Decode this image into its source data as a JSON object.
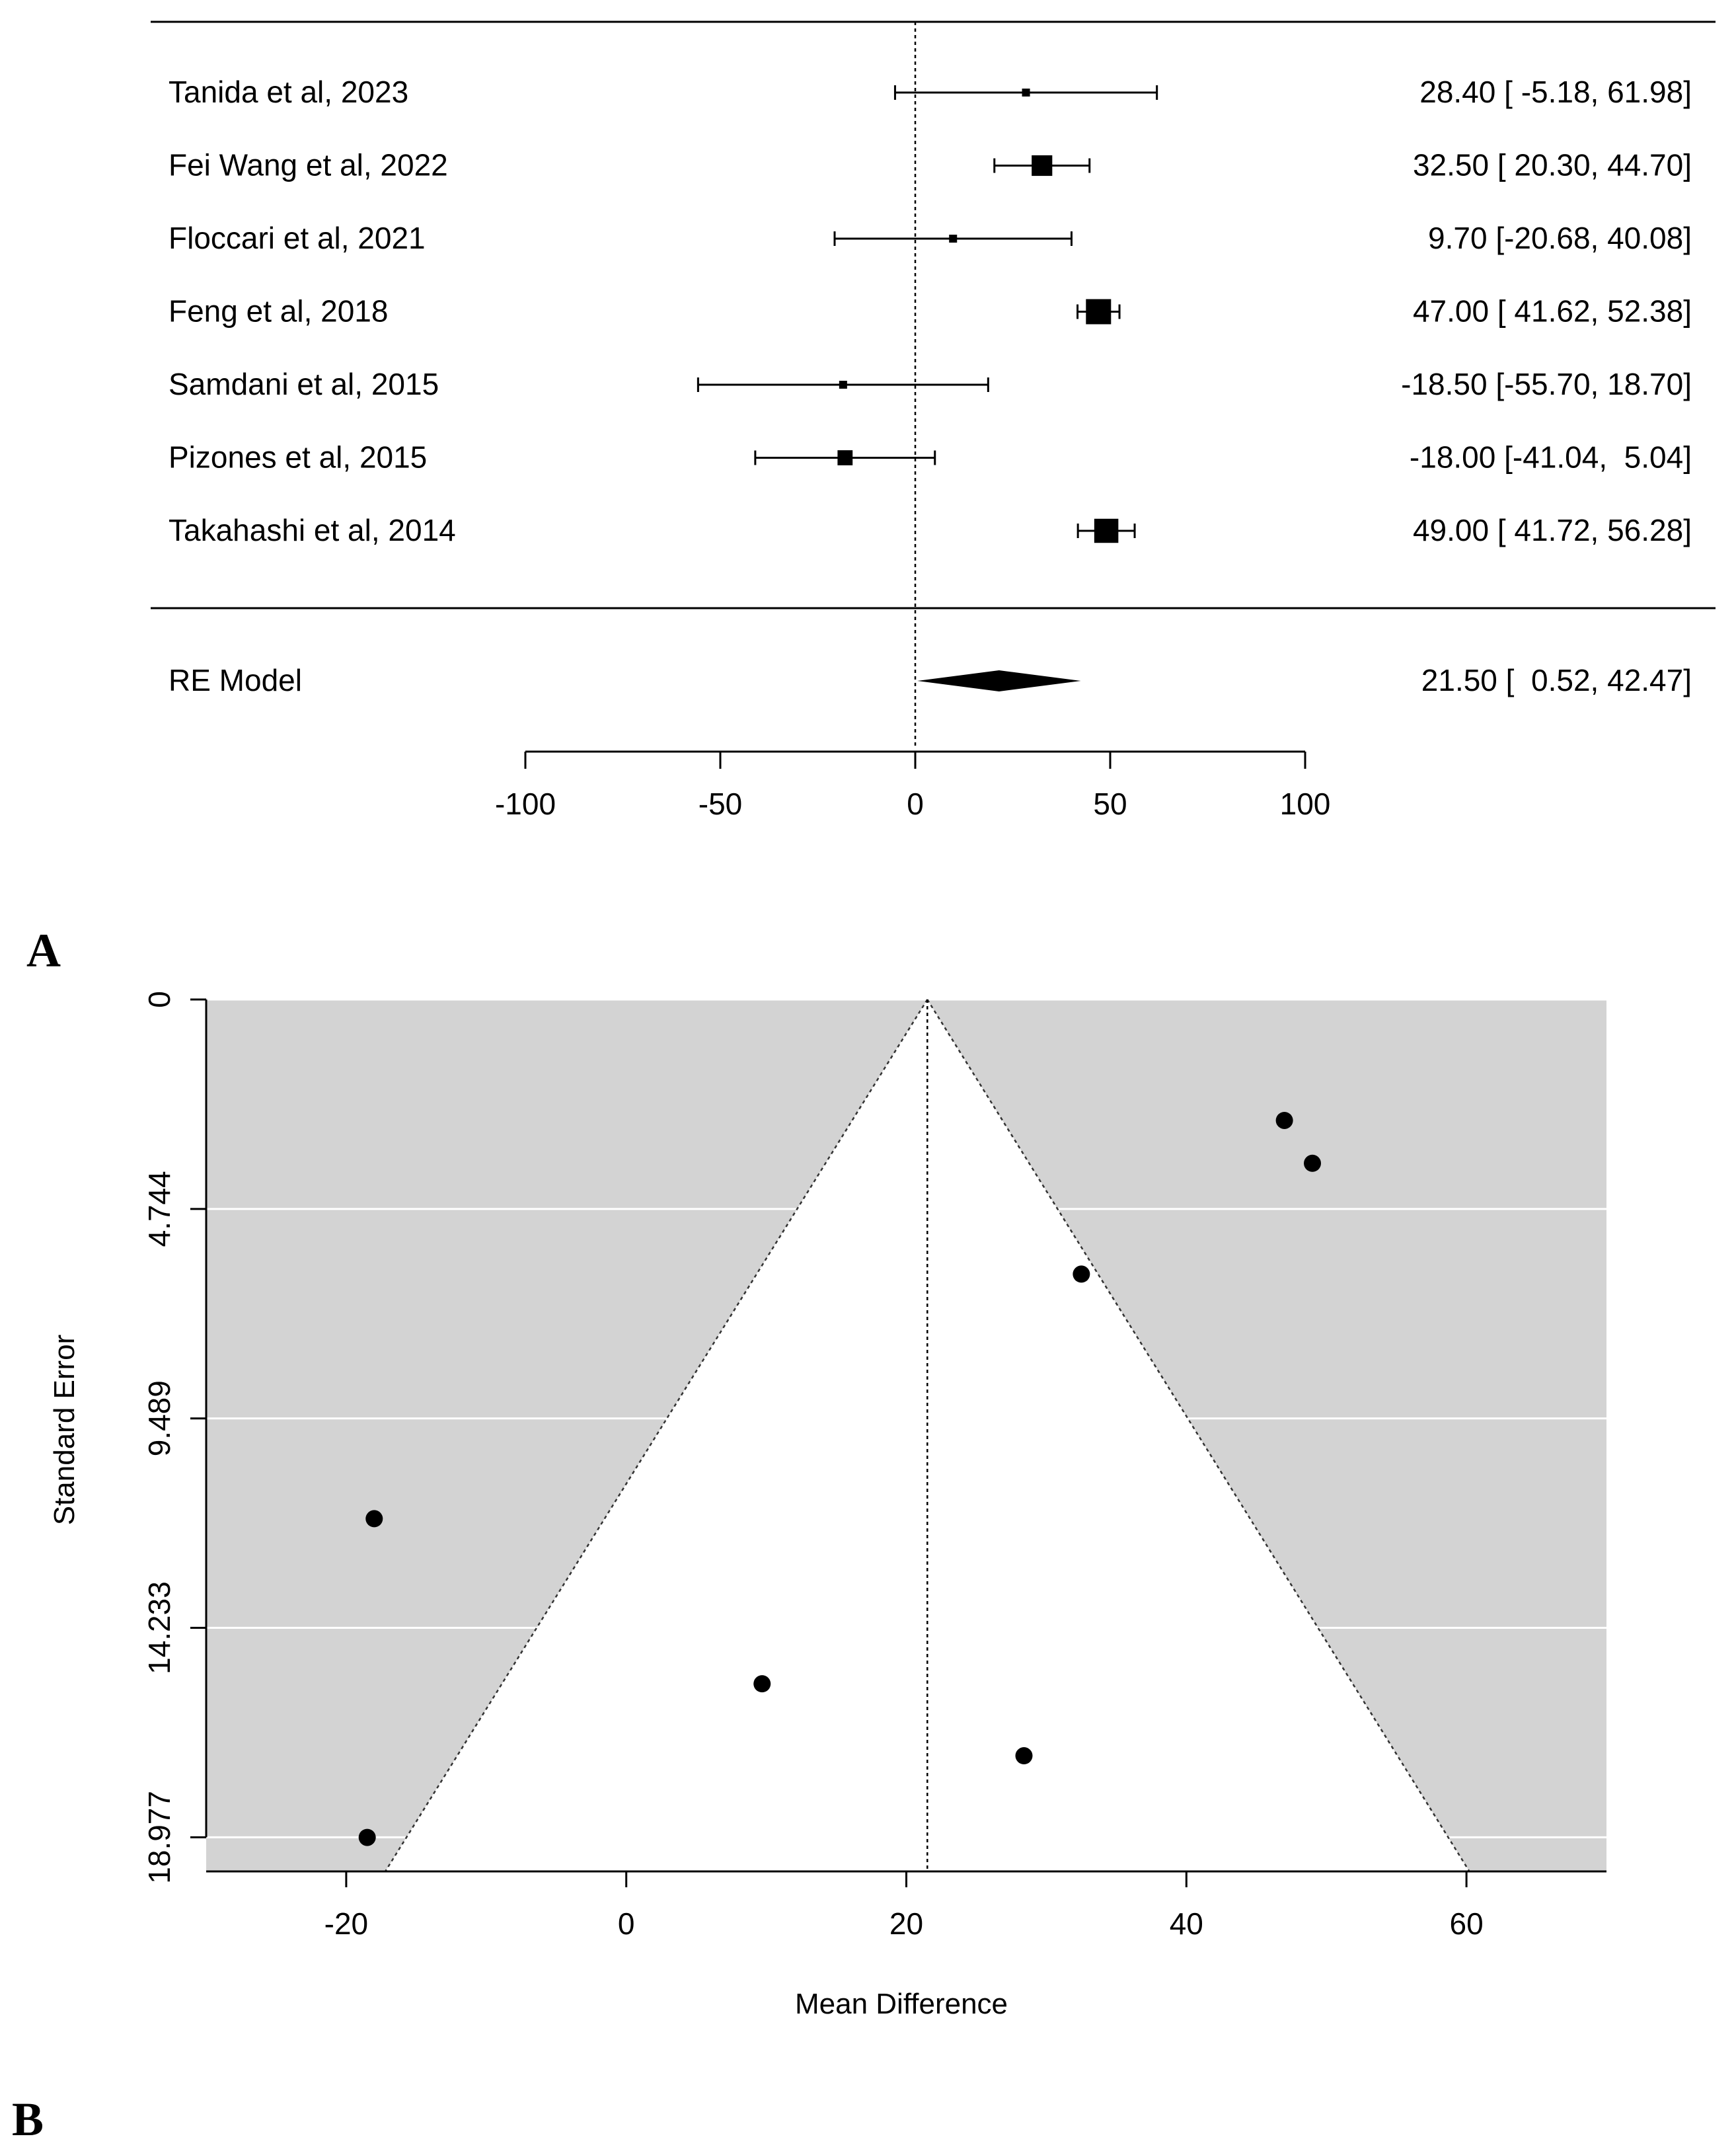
{
  "chart_data": [
    {
      "type": "forest",
      "panel_label": "A",
      "studies": [
        {
          "label": "Tanida et al, 2023",
          "estimate": 28.4,
          "ci_low": -5.18,
          "ci_high": 61.98,
          "ci_text": "28.40 [ -5.18, 61.98]",
          "weight": 0.26
        },
        {
          "label": "Fei Wang et al, 2022",
          "estimate": 32.5,
          "ci_low": 20.3,
          "ci_high": 44.7,
          "ci_text": "32.50 [ 20.30, 44.70]",
          "weight": 0.82
        },
        {
          "label": "Floccari et al, 2021",
          "estimate": 9.7,
          "ci_low": -20.68,
          "ci_high": 40.08,
          "ci_text": "9.70 [-20.68, 40.08]",
          "weight": 0.3
        },
        {
          "label": "Feng et al, 2018",
          "estimate": 47.0,
          "ci_low": 41.62,
          "ci_high": 52.38,
          "ci_text": "47.00 [ 41.62, 52.38]",
          "weight": 1.0
        },
        {
          "label": "Samdani et al, 2015",
          "estimate": -18.5,
          "ci_low": -55.7,
          "ci_high": 18.7,
          "ci_text": "-18.50 [-55.70, 18.70]",
          "weight": 0.18
        },
        {
          "label": "Pizones et al, 2015",
          "estimate": -18.0,
          "ci_low": -41.04,
          "ci_high": 5.04,
          "ci_text": "-18.00 [-41.04,  5.04]",
          "weight": 0.6
        },
        {
          "label": "Takahashi et al, 2014",
          "estimate": 49.0,
          "ci_low": 41.72,
          "ci_high": 56.28,
          "ci_text": "49.00 [ 41.72, 56.28]",
          "weight": 0.96
        }
      ],
      "summary": {
        "label": "RE Model",
        "estimate": 21.5,
        "ci_low": 0.52,
        "ci_high": 42.47,
        "ci_text": "21.50 [  0.52, 42.47]"
      },
      "reference_line": 0,
      "x_ticks": [
        -100,
        -50,
        0,
        50,
        100
      ],
      "xlim": [
        -100,
        100
      ]
    },
    {
      "type": "scatter",
      "subtype": "funnel",
      "panel_label": "B",
      "xlabel": "Mean Difference",
      "ylabel": "Standard Error",
      "x_ticks": [
        -20,
        0,
        20,
        40,
        60
      ],
      "y_ticks": [
        "0",
        "4.744",
        "9.489",
        "14.233",
        "18.977"
      ],
      "y_tick_values": [
        0,
        4.744,
        9.489,
        14.233,
        18.977
      ],
      "xlim": [
        -30,
        70
      ],
      "ylim": [
        0,
        19.75
      ],
      "y_reversed": true,
      "center": 21.5,
      "funnel_z": 1.96,
      "funnel_se_max": 18.977,
      "points": [
        {
          "x": 28.4,
          "y": 17.13
        },
        {
          "x": 32.5,
          "y": 6.22
        },
        {
          "x": 9.7,
          "y": 15.5
        },
        {
          "x": 47.0,
          "y": 2.74
        },
        {
          "x": -18.5,
          "y": 18.98
        },
        {
          "x": -18.0,
          "y": 11.76
        },
        {
          "x": 49.0,
          "y": 3.71
        }
      ],
      "colors": {
        "background": "#d3d3d3",
        "funnel": "#ffffff",
        "points": "#000000"
      },
      "grid": true
    }
  ]
}
